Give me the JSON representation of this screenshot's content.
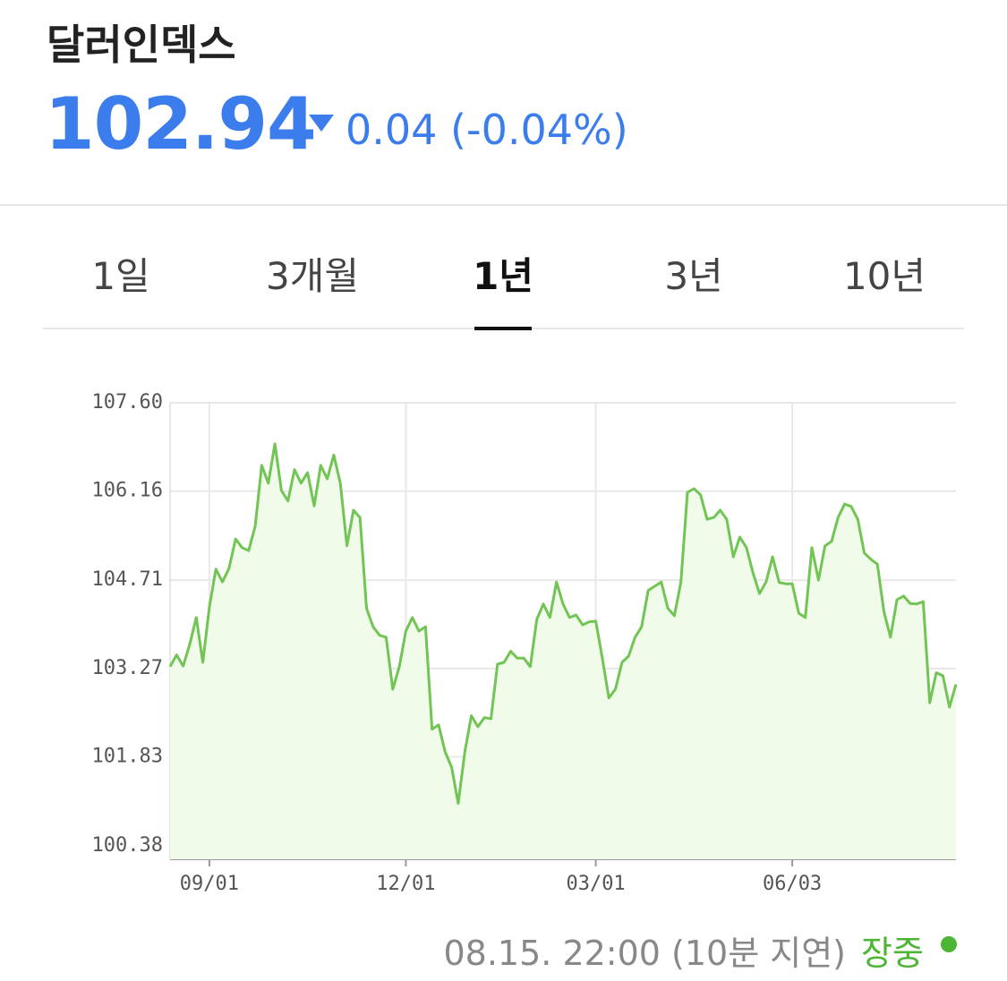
{
  "header": {
    "title": "달러인덱스",
    "price": "102.94",
    "change": "0.04 (-0.04%)"
  },
  "tabs": [
    "1일",
    "3개월",
    "1년",
    "3년",
    "10년"
  ],
  "active_tab": 2,
  "chart_data": {
    "type": "line",
    "color": "#72c454",
    "fill": "#f0fbea",
    "grid": true,
    "ylim": [
      100.16,
      107.6
    ],
    "yticks": [
      {
        "value": 107.6,
        "label": "107.60"
      },
      106.16,
      104.71,
      103.27,
      101.83,
      100.38
    ],
    "categories": [
      null,
      null,
      null,
      null,
      null,
      null,
      "09/01",
      null,
      null,
      null,
      null,
      null,
      null,
      null,
      null,
      null,
      null,
      null,
      null,
      null,
      null,
      null,
      null,
      null,
      null,
      null,
      null,
      null,
      null,
      null,
      null,
      null,
      null,
      null,
      null,
      null,
      "12/01",
      null,
      null,
      null,
      null,
      null,
      null,
      null,
      null,
      null,
      null,
      null,
      null,
      null,
      null,
      null,
      null,
      null,
      null,
      null,
      null,
      null,
      null,
      null,
      null,
      null,
      null,
      null,
      null,
      "03/01",
      null,
      null,
      null,
      null,
      null,
      null,
      null,
      null,
      null,
      null,
      null,
      null,
      null,
      null,
      null,
      null,
      null,
      null,
      null,
      null,
      null,
      null,
      null,
      null,
      null,
      null,
      null,
      null,
      null,
      "06/03",
      null,
      null,
      null,
      null,
      null,
      null,
      null,
      null,
      null,
      null,
      null,
      null,
      null,
      null,
      null,
      null,
      null,
      null,
      null,
      null,
      null,
      null,
      null,
      null,
      null
    ],
    "values": [
      103.3,
      103.49,
      103.31,
      103.66,
      104.1,
      103.37,
      104.27,
      104.89,
      104.68,
      104.9,
      105.38,
      105.24,
      105.19,
      105.59,
      106.58,
      106.29,
      106.93,
      106.17,
      106.0,
      106.51,
      106.29,
      106.46,
      105.92,
      106.58,
      106.36,
      106.75,
      106.29,
      105.27,
      105.85,
      105.73,
      104.25,
      103.95,
      103.81,
      103.78,
      102.93,
      103.3,
      103.88,
      104.1,
      103.88,
      103.95,
      102.28,
      102.35,
      101.91,
      101.66,
      101.07,
      101.91,
      102.5,
      102.32,
      102.47,
      102.45,
      103.34,
      103.37,
      103.55,
      103.44,
      103.44,
      103.3,
      104.07,
      104.32,
      104.1,
      104.68,
      104.32,
      104.1,
      104.14,
      103.98,
      104.03,
      104.04,
      103.44,
      102.79,
      102.93,
      103.37,
      103.47,
      103.78,
      103.95,
      104.54,
      104.61,
      104.68,
      104.25,
      104.13,
      104.68,
      106.14,
      106.2,
      106.1,
      105.7,
      105.73,
      105.85,
      105.7,
      105.09,
      105.41,
      105.24,
      104.83,
      104.49,
      104.68,
      105.09,
      104.67,
      104.65,
      104.65,
      104.17,
      104.1,
      105.24,
      104.71,
      105.27,
      105.34,
      105.73,
      105.95,
      105.91,
      105.7,
      105.15,
      105.05,
      104.97,
      104.2,
      103.78,
      104.39,
      104.45,
      104.33,
      104.32,
      104.36,
      102.71,
      103.2,
      103.15,
      102.64,
      103.01
    ]
  },
  "footer": {
    "timestamp": "08.15. 22:00 (10분 지연)",
    "status": "장중"
  }
}
